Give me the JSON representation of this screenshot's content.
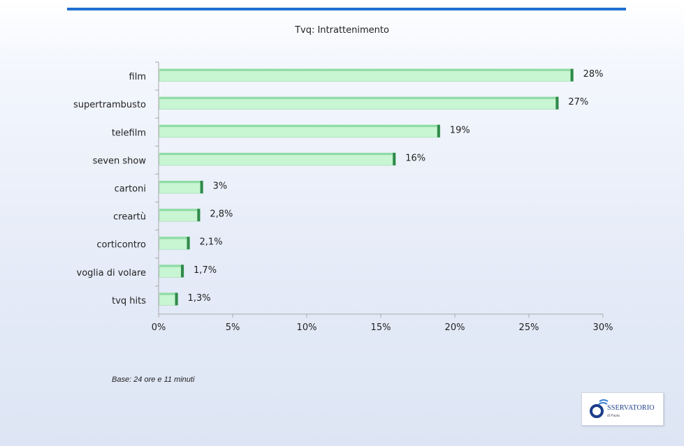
{
  "chart_data": {
    "type": "bar",
    "orientation": "horizontal",
    "title": "Tvq: Intrattenimento",
    "categories": [
      "film",
      "supertrambusto",
      "telefilm",
      "seven show",
      "cartoni",
      "creartù",
      "corticontro",
      "voglia di volare",
      "tvq hits"
    ],
    "values": [
      28,
      27,
      19,
      16,
      3,
      2.8,
      2.1,
      1.7,
      1.3
    ],
    "value_labels": [
      "28%",
      "27%",
      "19%",
      "16%",
      "3%",
      "2,8%",
      "2,1%",
      "1,7%",
      "1,3%"
    ],
    "xlim": [
      0,
      30
    ],
    "xticks": [
      0,
      5,
      10,
      15,
      20,
      25,
      30
    ],
    "xtick_labels": [
      "0%",
      "5%",
      "10%",
      "15%",
      "20%",
      "25%",
      "30%"
    ],
    "xlabel": "",
    "ylabel": "",
    "grid": false,
    "legend": "none",
    "colors": {
      "bar_fill": "#c8f5d2",
      "bar_top": "#8fdca3",
      "bar_end": "#2f8a4a",
      "axis": "#a8a8a8"
    }
  },
  "footnote": "Base: 24 ore e 11 minuti",
  "logo": {
    "text": "SSERVATORIO",
    "subtext": "di Pavia",
    "icon": "observatory-logo-icon"
  }
}
